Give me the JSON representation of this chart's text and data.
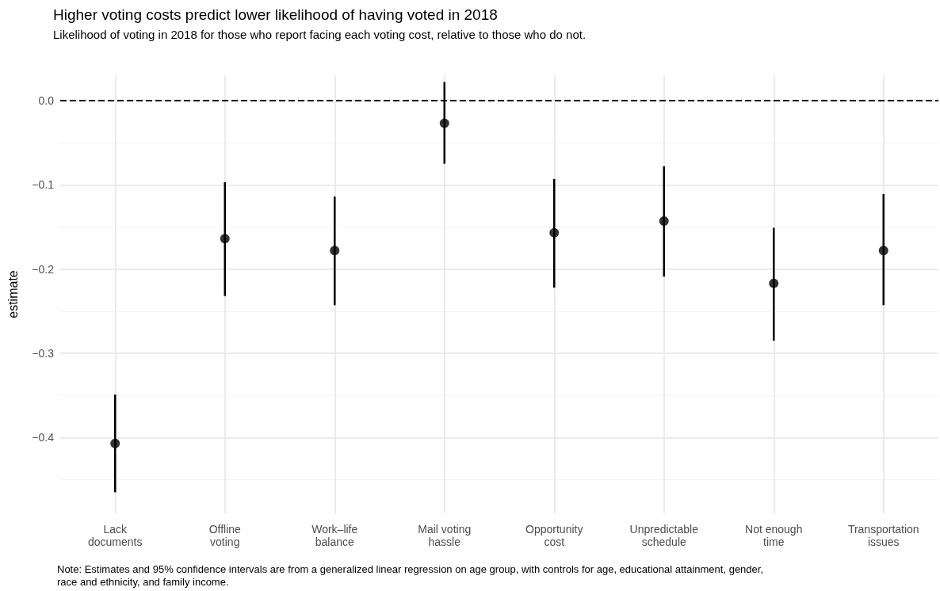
{
  "chart_data": {
    "type": "scatter",
    "title": "Higher voting costs predict lower likelihood of having voted in 2018",
    "subtitle": "Likelihood of voting in 2018 for those who report facing each voting cost, relative to those who do not.",
    "ylabel": "estimate",
    "categories": [
      "Lack\ndocuments",
      "Offline\nvoting",
      "Work–life\nbalance",
      "Mail voting\nhassle",
      "Opportunity\ncost",
      "Unpredictable\nschedule",
      "Not enough\ntime",
      "Transportation\nissues"
    ],
    "series": [
      {
        "color": "#000000",
        "values": [
          -0.407,
          -0.164,
          -0.178,
          -0.027,
          -0.157,
          -0.143,
          -0.217,
          -0.178
        ],
        "errors": [
          [
            -0.465,
            -0.349
          ],
          [
            -0.232,
            -0.097
          ],
          [
            -0.243,
            -0.114
          ],
          [
            -0.075,
            0.022
          ],
          [
            -0.222,
            -0.093
          ],
          [
            -0.209,
            -0.078
          ],
          [
            -0.285,
            -0.151
          ],
          [
            -0.243,
            -0.111
          ]
        ]
      }
    ],
    "ylim": [
      -0.49,
      0.03
    ],
    "yticks": [
      {
        "value": -0.4,
        "label": "−0.4"
      },
      {
        "value": -0.3,
        "label": "−0.3"
      },
      {
        "value": -0.2,
        "label": "−0.2"
      },
      {
        "value": -0.1,
        "label": "−0.1"
      },
      {
        "value": 0,
        "label": "0.0"
      }
    ],
    "ref_lines": [
      {
        "axis": "y",
        "value": 0,
        "color": "#000000",
        "line_style": "dashed"
      }
    ],
    "grid": true,
    "marker": "circle",
    "annotations": [
      "Note: Estimates and 95% confidence intervals are from a generalized linear regression on age group, with controls for age, educational attainment, gender,\nrace and ethnicity, and family income."
    ]
  }
}
